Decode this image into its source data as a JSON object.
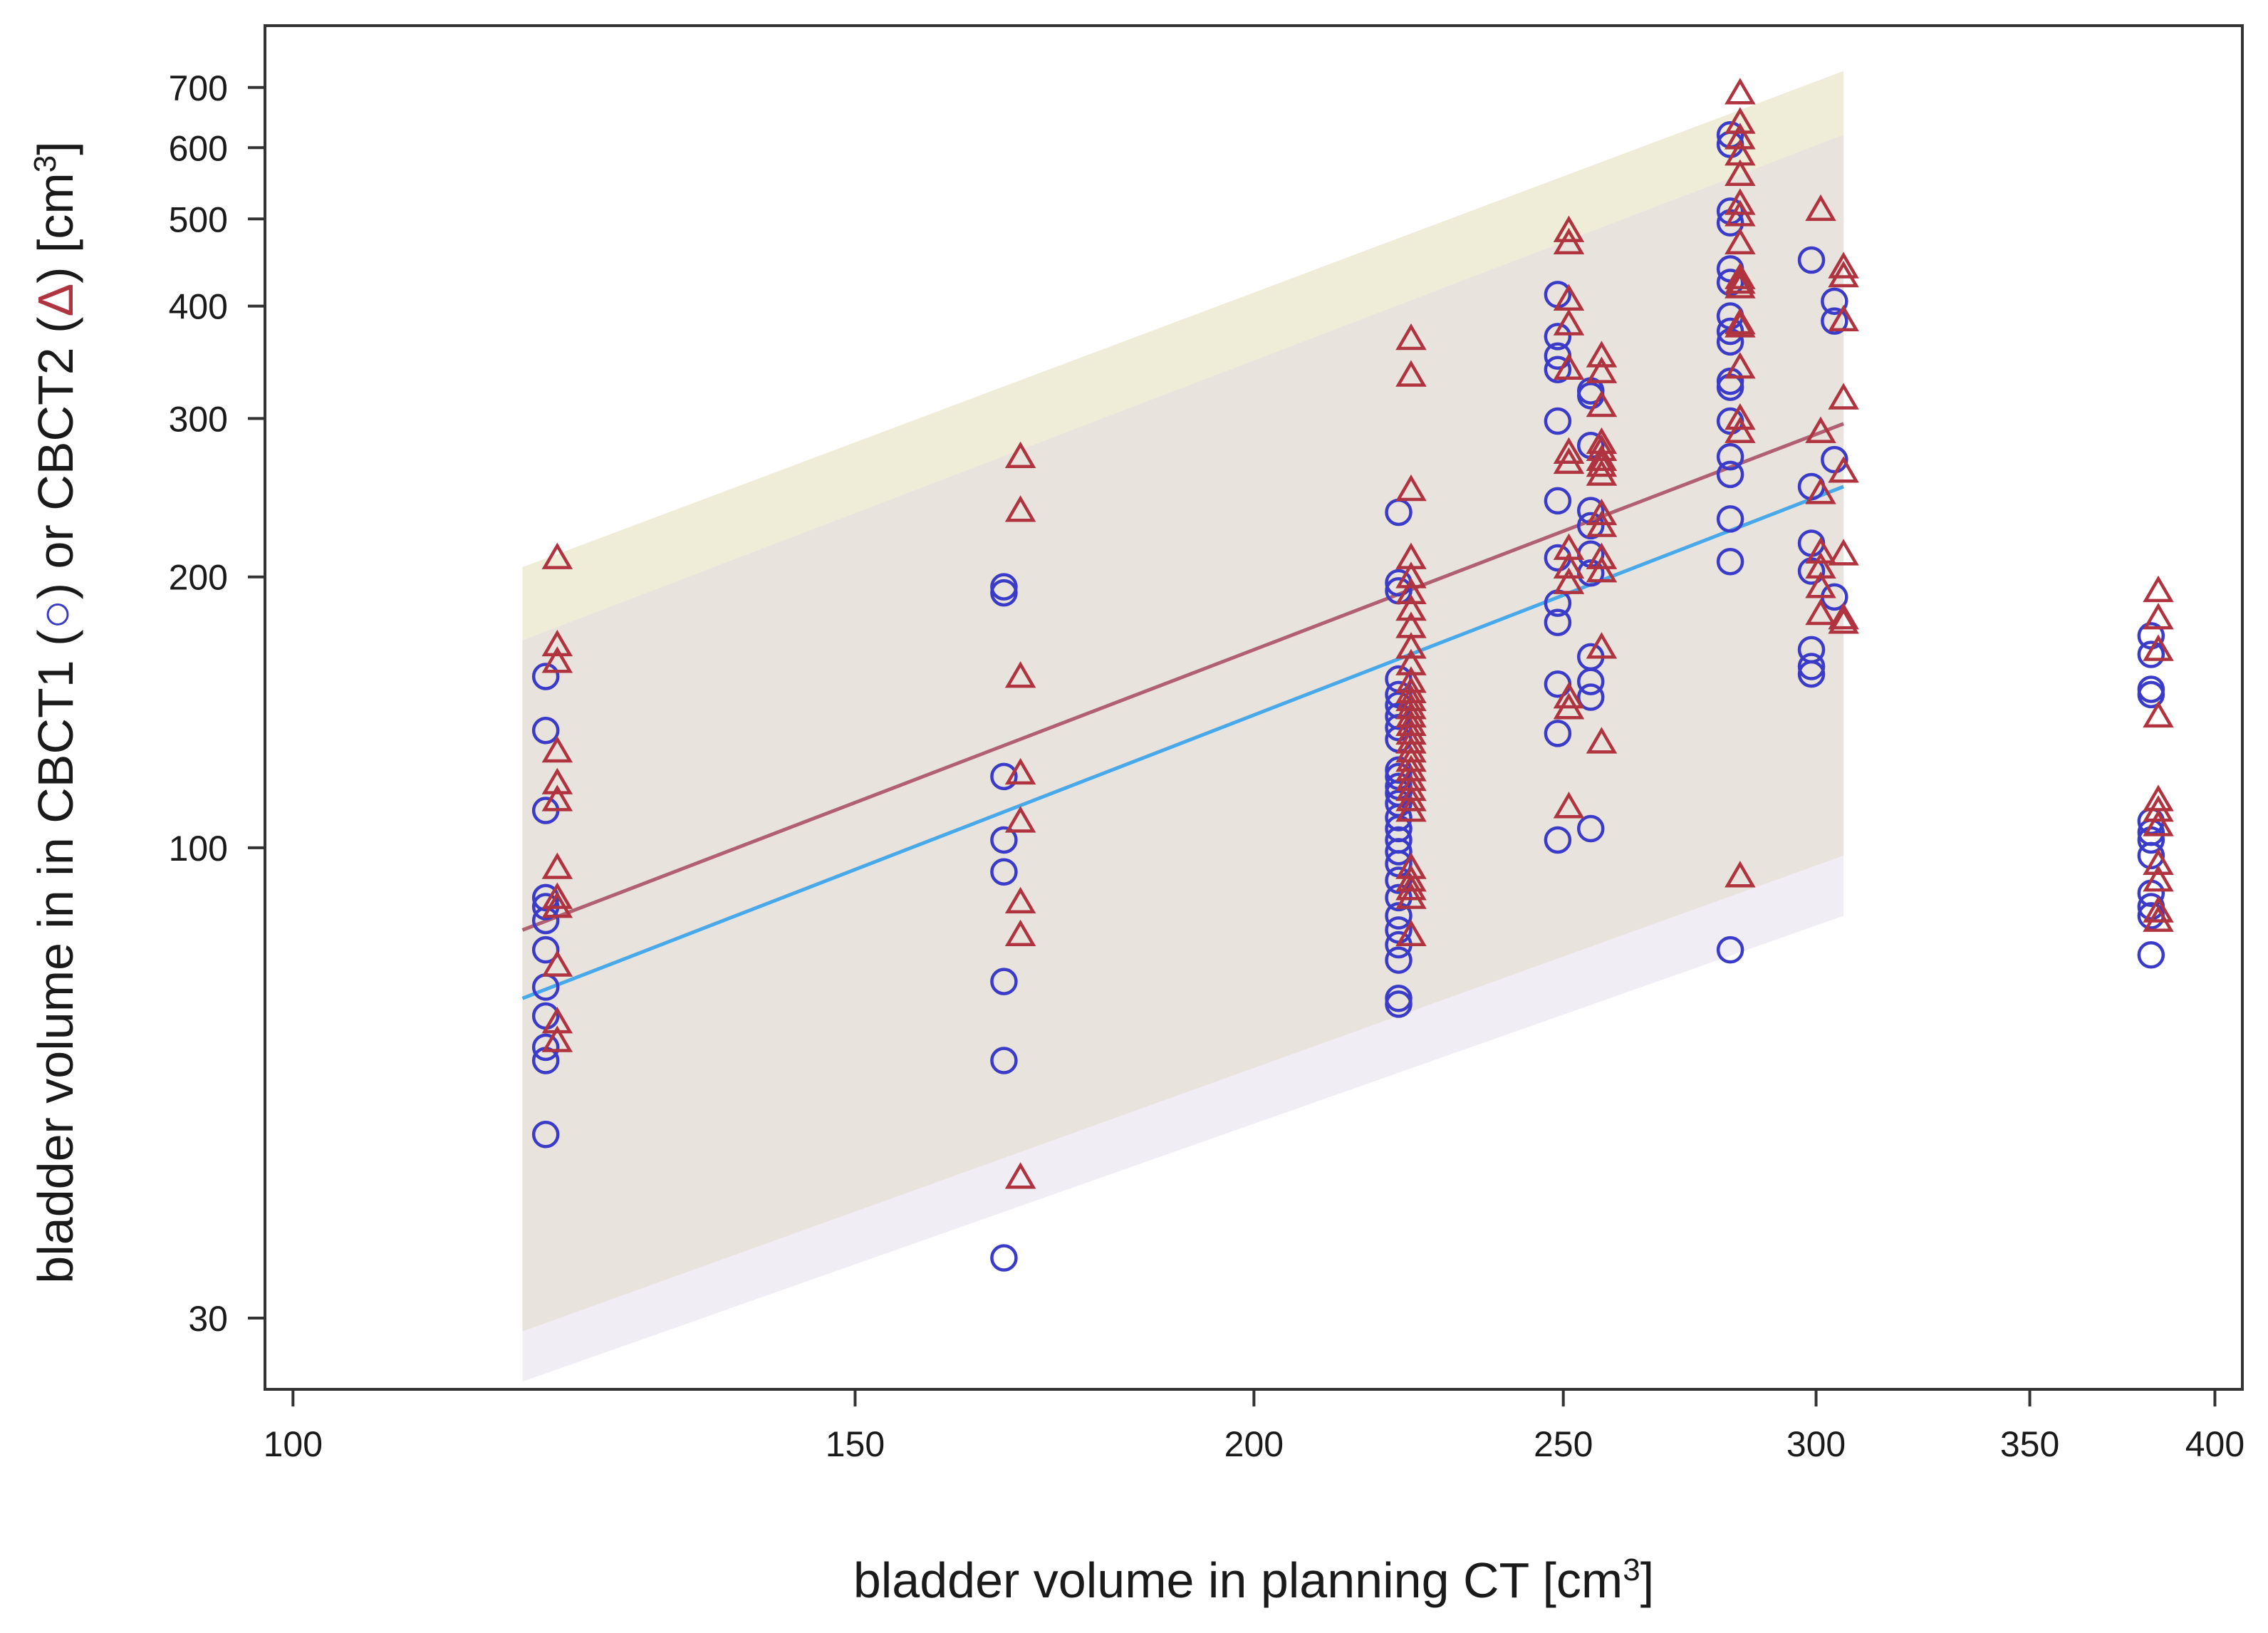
{
  "chart_data": {
    "type": "scatter",
    "title": "",
    "xlabel": {
      "main": "bladder volume in planning CT [cm",
      "sup": "3",
      "end": "]"
    },
    "ylabel": {
      "part1": "bladder volume in in CBCT1 (",
      "marker1": "○",
      "part2": ") or CBCT2 (",
      "marker2": "Δ",
      "part3": ") [cm",
      "sup": "3",
      "end": "]"
    },
    "x_scale": "log",
    "y_scale": "log",
    "xlim": [
      98,
      408
    ],
    "ylim": [
      25,
      820
    ],
    "x_ticks": [
      100,
      150,
      200,
      250,
      300,
      350,
      400
    ],
    "x_tick_labels": [
      "100",
      "150",
      "200",
      "250",
      "300",
      "350",
      "400"
    ],
    "y_ticks": [
      30,
      100,
      200,
      300,
      400,
      500,
      600,
      700
    ],
    "y_tick_labels": [
      "30",
      "100",
      "200",
      "300",
      "400",
      "500",
      "600",
      "700"
    ],
    "colors": {
      "cbct1": "#3b3bc9",
      "cbct2": "#b0343f",
      "fit_cbct1": "#47a8ea",
      "fit_cbct2": "#b06070",
      "band_cbct2": "#efedd8",
      "band_cbct1": "#eeeaf2",
      "band_overlap": "#e9e3dd"
    },
    "bands": [
      {
        "name": "CBCT2 prediction band",
        "x_range": [
          118,
          306
        ],
        "lower": [
          29,
          98
        ],
        "upper": [
          205,
          730
        ]
      },
      {
        "name": "CBCT1 prediction band",
        "x_range": [
          118,
          306
        ],
        "lower": [
          25.5,
          84
        ],
        "upper": [
          170,
          620
        ]
      }
    ],
    "fit_lines": [
      {
        "name": "CBCT2 fit",
        "x": [
          118,
          306
        ],
        "y": [
          81,
          296
        ]
      },
      {
        "name": "CBCT1 fit",
        "x": [
          118,
          306
        ],
        "y": [
          68,
          252
        ]
      }
    ],
    "series": [
      {
        "name": "CBCT1",
        "marker": "circle",
        "points": [
          [
            120,
            155
          ],
          [
            120,
            135
          ],
          [
            120,
            110
          ],
          [
            120,
            88
          ],
          [
            120,
            86
          ],
          [
            120,
            83
          ],
          [
            120,
            77
          ],
          [
            120,
            70
          ],
          [
            120,
            65
          ],
          [
            120,
            60
          ],
          [
            120,
            58
          ],
          [
            120,
            48
          ],
          [
            167,
            195
          ],
          [
            167,
            192
          ],
          [
            167,
            120
          ],
          [
            167,
            102
          ],
          [
            167,
            94
          ],
          [
            167,
            71
          ],
          [
            167,
            58
          ],
          [
            167,
            35
          ],
          [
            222,
            236
          ],
          [
            222,
            197
          ],
          [
            222,
            193
          ],
          [
            222,
            154
          ],
          [
            222,
            148
          ],
          [
            222,
            144
          ],
          [
            222,
            140
          ],
          [
            222,
            136
          ],
          [
            222,
            132
          ],
          [
            222,
            122
          ],
          [
            222,
            120
          ],
          [
            222,
            117
          ],
          [
            222,
            115
          ],
          [
            222,
            112
          ],
          [
            222,
            108
          ],
          [
            222,
            105
          ],
          [
            222,
            102
          ],
          [
            222,
            99
          ],
          [
            222,
            96
          ],
          [
            222,
            92
          ],
          [
            222,
            88
          ],
          [
            222,
            84
          ],
          [
            222,
            81
          ],
          [
            222,
            78
          ],
          [
            222,
            75
          ],
          [
            222,
            68
          ],
          [
            222,
            67
          ],
          [
            249,
            412
          ],
          [
            249,
            370
          ],
          [
            249,
            352
          ],
          [
            249,
            340
          ],
          [
            249,
            298
          ],
          [
            249,
            243
          ],
          [
            249,
            210
          ],
          [
            249,
            187
          ],
          [
            249,
            178
          ],
          [
            249,
            152
          ],
          [
            249,
            134
          ],
          [
            249,
            102
          ],
          [
            255,
            322
          ],
          [
            255,
            318
          ],
          [
            255,
            280
          ],
          [
            255,
            237
          ],
          [
            255,
            228
          ],
          [
            255,
            212
          ],
          [
            255,
            202
          ],
          [
            255,
            163
          ],
          [
            255,
            153
          ],
          [
            255,
            147
          ],
          [
            255,
            105
          ],
          [
            282,
            620
          ],
          [
            282,
            605
          ],
          [
            282,
            510
          ],
          [
            282,
            495
          ],
          [
            282,
            440
          ],
          [
            282,
            425
          ],
          [
            282,
            390
          ],
          [
            282,
            375
          ],
          [
            282,
            365
          ],
          [
            282,
            330
          ],
          [
            282,
            325
          ],
          [
            282,
            298
          ],
          [
            282,
            272
          ],
          [
            282,
            260
          ],
          [
            282,
            232
          ],
          [
            282,
            208
          ],
          [
            282,
            77
          ],
          [
            299,
            450
          ],
          [
            299,
            252
          ],
          [
            299,
            218
          ],
          [
            299,
            203
          ],
          [
            299,
            166
          ],
          [
            299,
            159
          ],
          [
            299,
            156
          ],
          [
            304,
            405
          ],
          [
            304,
            385
          ],
          [
            304,
            270
          ],
          [
            304,
            190
          ],
          [
            382,
            172
          ],
          [
            382,
            164
          ],
          [
            382,
            150
          ],
          [
            382,
            148
          ],
          [
            382,
            107
          ],
          [
            382,
            104
          ],
          [
            382,
            102
          ],
          [
            382,
            98
          ],
          [
            382,
            89
          ],
          [
            382,
            86
          ],
          [
            382,
            84
          ],
          [
            382,
            76
          ]
        ]
      },
      {
        "name": "CBCT2",
        "marker": "triangle",
        "points": [
          [
            121,
            210
          ],
          [
            121,
            168
          ],
          [
            121,
            161
          ],
          [
            121,
            128
          ],
          [
            121,
            118
          ],
          [
            121,
            113
          ],
          [
            121,
            95
          ],
          [
            121,
            88
          ],
          [
            121,
            86
          ],
          [
            121,
            74
          ],
          [
            121,
            64
          ],
          [
            121,
            61
          ],
          [
            169,
            272
          ],
          [
            169,
            237
          ],
          [
            169,
            155
          ],
          [
            169,
            121
          ],
          [
            169,
            107
          ],
          [
            169,
            87
          ],
          [
            169,
            80
          ],
          [
            169,
            43
          ],
          [
            224,
            368
          ],
          [
            224,
            335
          ],
          [
            224,
            250
          ],
          [
            224,
            210
          ],
          [
            224,
            200
          ],
          [
            224,
            192
          ],
          [
            224,
            184
          ],
          [
            224,
            176
          ],
          [
            224,
            167
          ],
          [
            224,
            160
          ],
          [
            224,
            153
          ],
          [
            224,
            149
          ],
          [
            224,
            146
          ],
          [
            224,
            143
          ],
          [
            224,
            140
          ],
          [
            224,
            137
          ],
          [
            224,
            134
          ],
          [
            224,
            131
          ],
          [
            224,
            128
          ],
          [
            224,
            125
          ],
          [
            224,
            122
          ],
          [
            224,
            119
          ],
          [
            224,
            116
          ],
          [
            224,
            113
          ],
          [
            224,
            110
          ],
          [
            224,
            95
          ],
          [
            224,
            92
          ],
          [
            224,
            90
          ],
          [
            224,
            88
          ],
          [
            224,
            80
          ],
          [
            251,
            485
          ],
          [
            251,
            470
          ],
          [
            251,
            407
          ],
          [
            251,
            382
          ],
          [
            251,
            341
          ],
          [
            251,
            275
          ],
          [
            251,
            268
          ],
          [
            251,
            215
          ],
          [
            251,
            205
          ],
          [
            251,
            197
          ],
          [
            251,
            147
          ],
          [
            251,
            143
          ],
          [
            251,
            111
          ],
          [
            257,
            352
          ],
          [
            257,
            338
          ],
          [
            257,
            310
          ],
          [
            257,
            282
          ],
          [
            257,
            277
          ],
          [
            257,
            270
          ],
          [
            257,
            266
          ],
          [
            257,
            260
          ],
          [
            257,
            235
          ],
          [
            257,
            228
          ],
          [
            257,
            210
          ],
          [
            257,
            203
          ],
          [
            257,
            167
          ],
          [
            257,
            131
          ],
          [
            284,
            690
          ],
          [
            284,
            640
          ],
          [
            284,
            615
          ],
          [
            284,
            590
          ],
          [
            284,
            560
          ],
          [
            284,
            520
          ],
          [
            284,
            505
          ],
          [
            284,
            470
          ],
          [
            284,
            430
          ],
          [
            284,
            425
          ],
          [
            284,
            420
          ],
          [
            284,
            383
          ],
          [
            284,
            380
          ],
          [
            284,
            342
          ],
          [
            284,
            300
          ],
          [
            284,
            290
          ],
          [
            284,
            93
          ],
          [
            301,
            512
          ],
          [
            301,
            290
          ],
          [
            301,
            248
          ],
          [
            301,
            213
          ],
          [
            301,
            205
          ],
          [
            301,
            195
          ],
          [
            301,
            182
          ],
          [
            306,
            442
          ],
          [
            306,
            432
          ],
          [
            306,
            386
          ],
          [
            306,
            316
          ],
          [
            306,
            262
          ],
          [
            306,
            212
          ],
          [
            306,
            180
          ],
          [
            306,
            178
          ],
          [
            384,
            193
          ],
          [
            384,
            180
          ],
          [
            384,
            166
          ],
          [
            384,
            140
          ],
          [
            384,
            113
          ],
          [
            384,
            110
          ],
          [
            384,
            106
          ],
          [
            384,
            96
          ],
          [
            384,
            92
          ],
          [
            384,
            85
          ],
          [
            384,
            83
          ]
        ]
      }
    ]
  }
}
